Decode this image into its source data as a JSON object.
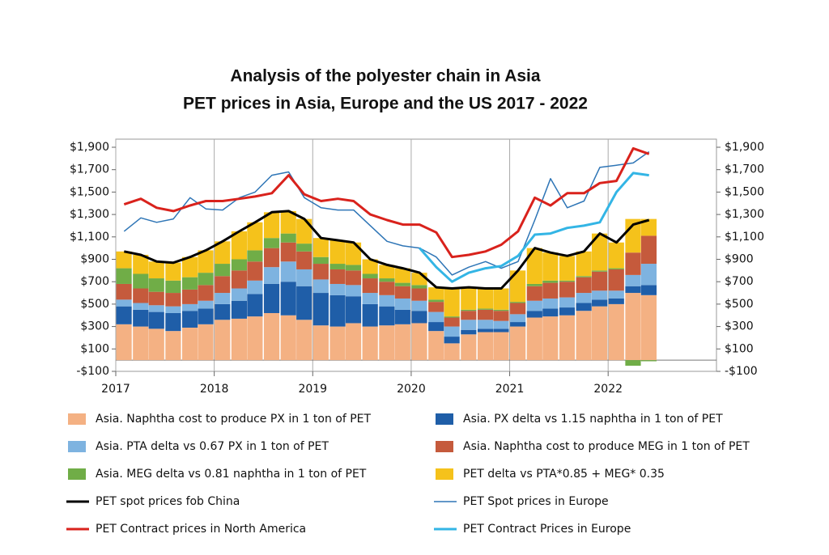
{
  "chart_data": {
    "type": "stacked-bar-line",
    "title": "Analysis of the polyester chain in Asia",
    "subtitle": "PET prices in Asia, Europe and the US 2017 - 2022",
    "x": [
      2017,
      2017.17,
      2017.33,
      2017.5,
      2017.67,
      2017.83,
      2018,
      2018.17,
      2018.33,
      2018.5,
      2018.67,
      2018.83,
      2019,
      2019.17,
      2019.33,
      2019.5,
      2019.67,
      2019.83,
      2020,
      2020.17,
      2020.33,
      2020.5,
      2020.67,
      2020.83,
      2021,
      2021.17,
      2021.33,
      2021.5,
      2021.67,
      2021.83,
      2022,
      2022.17,
      2022.33
    ],
    "xlim": [
      2017,
      2023.1
    ],
    "xticks": [
      2017,
      2018,
      2019,
      2020,
      2021,
      2022
    ],
    "ylim": [
      -100,
      1900
    ],
    "yticks": [
      {
        "value": -100,
        "label": "-$100"
      },
      {
        "value": 100,
        "label": "$100"
      },
      {
        "value": 300,
        "label": "$300"
      },
      {
        "value": 500,
        "label": "$500"
      },
      {
        "value": 700,
        "label": "$700"
      },
      {
        "value": 900,
        "label": "$900"
      },
      {
        "value": 1100,
        "label": "$1,100"
      },
      {
        "value": 1300,
        "label": "$1,300"
      },
      {
        "value": 1500,
        "label": "$1,500"
      },
      {
        "value": 1700,
        "label": "$1,700"
      },
      {
        "value": 1900,
        "label": "$1,900"
      }
    ],
    "y2lim": [
      -100,
      1900
    ],
    "y2ticks": [
      {
        "value": -100,
        "label": "-$100"
      },
      {
        "value": 100,
        "label": "$100"
      },
      {
        "value": 300,
        "label": "$300"
      },
      {
        "value": 500,
        "label": "$500"
      },
      {
        "value": 700,
        "label": "$700"
      },
      {
        "value": 900,
        "label": "$900"
      },
      {
        "value": 1100,
        "label": "$1,100"
      },
      {
        "value": 1300,
        "label": "$1,300"
      },
      {
        "value": 1500,
        "label": "$1,500"
      },
      {
        "value": 1700,
        "label": "$1,700"
      },
      {
        "value": 1900,
        "label": "$1,900"
      }
    ],
    "grid": "x",
    "series": [
      {
        "name": "Asia. Naphtha cost to produce PX in 1 ton of PET",
        "kind": "bar",
        "color": "#f4b183",
        "values": [
          320,
          300,
          280,
          260,
          290,
          320,
          360,
          370,
          390,
          420,
          400,
          360,
          310,
          300,
          330,
          300,
          310,
          320,
          330,
          260,
          150,
          230,
          250,
          250,
          300,
          380,
          390,
          400,
          440,
          480,
          500,
          600,
          580
        ]
      },
      {
        "name": "Asia. PX delta vs 1.15 naphtha in 1 ton of PET",
        "kind": "bar",
        "color": "#1f5ea8",
        "values": [
          160,
          150,
          150,
          160,
          150,
          140,
          140,
          160,
          200,
          260,
          300,
          300,
          290,
          280,
          240,
          200,
          170,
          130,
          110,
          80,
          60,
          40,
          30,
          30,
          40,
          60,
          70,
          70,
          70,
          60,
          50,
          60,
          90
        ]
      },
      {
        "name": "Asia. PTA delta vs 0.67 PX in 1 ton of PET",
        "kind": "bar",
        "color": "#7eb3e0",
        "values": [
          60,
          60,
          60,
          60,
          60,
          70,
          100,
          110,
          120,
          150,
          180,
          150,
          120,
          100,
          100,
          100,
          100,
          100,
          90,
          90,
          90,
          90,
          80,
          70,
          70,
          90,
          90,
          90,
          90,
          80,
          70,
          100,
          190
        ]
      },
      {
        "name": "Asia. Naphtha cost to produce MEG in 1 ton of PET",
        "kind": "bar",
        "color": "#c55a3c",
        "values": [
          140,
          130,
          120,
          120,
          130,
          140,
          150,
          160,
          170,
          170,
          170,
          160,
          140,
          130,
          130,
          130,
          120,
          110,
          110,
          90,
          80,
          80,
          90,
          90,
          100,
          130,
          140,
          140,
          140,
          170,
          190,
          200,
          250
        ]
      },
      {
        "name": "Asia. MEG delta vs 0.81 naphtha in 1 ton of PET",
        "kind": "bar",
        "color": "#70ad47",
        "values": [
          140,
          130,
          120,
          110,
          110,
          110,
          110,
          100,
          100,
          90,
          80,
          70,
          60,
          50,
          50,
          40,
          30,
          30,
          30,
          20,
          10,
          10,
          10,
          10,
          10,
          20,
          20,
          10,
          10,
          10,
          10,
          -50,
          -10
        ]
      },
      {
        "name": "PET delta vs PTA*0.85 + MEG* 0.35",
        "kind": "bar",
        "color": "#f5c21b",
        "values": [
          150,
          170,
          150,
          160,
          180,
          200,
          200,
          250,
          250,
          230,
          200,
          220,
          170,
          210,
          200,
          130,
          120,
          130,
          110,
          110,
          250,
          200,
          180,
          190,
          280,
          320,
          250,
          220,
          220,
          330,
          230,
          300,
          150
        ]
      },
      {
        "name": "PET spot prices fob China",
        "kind": "line",
        "color": "#000000",
        "width": 3,
        "values": [
          970,
          940,
          880,
          870,
          920,
          980,
          1060,
          1150,
          1230,
          1320,
          1330,
          1260,
          1090,
          1070,
          1050,
          900,
          850,
          820,
          780,
          650,
          640,
          650,
          640,
          640,
          800,
          1000,
          960,
          930,
          970,
          1130,
          1050,
          1210,
          1250
        ]
      },
      {
        "name": "PET Spot prices in Europe",
        "kind": "line",
        "color": "#2e75b6",
        "width": 1.5,
        "values": [
          1150,
          1270,
          1230,
          1260,
          1450,
          1350,
          1340,
          1450,
          1500,
          1650,
          1680,
          1450,
          1360,
          1340,
          1340,
          1200,
          1060,
          1020,
          1000,
          920,
          760,
          830,
          880,
          820,
          880,
          1250,
          1620,
          1360,
          1420,
          1720,
          1740,
          1760,
          1860
        ]
      },
      {
        "name": "PET Contract prices in North America",
        "kind": "line",
        "color": "#d9221c",
        "width": 3,
        "values": [
          1390,
          1440,
          1360,
          1330,
          1380,
          1420,
          1420,
          1440,
          1460,
          1490,
          1650,
          1480,
          1420,
          1440,
          1420,
          1300,
          1250,
          1210,
          1210,
          1140,
          920,
          940,
          970,
          1030,
          1150,
          1450,
          1380,
          1490,
          1490,
          1580,
          1600,
          1890,
          1840
        ]
      },
      {
        "name": "PET Contract Prices in Europe",
        "kind": "line",
        "color": "#33b5e5",
        "width": 3,
        "values": [
          null,
          null,
          null,
          null,
          null,
          null,
          null,
          null,
          null,
          null,
          null,
          null,
          null,
          null,
          null,
          null,
          null,
          null,
          1000,
          830,
          700,
          780,
          820,
          840,
          930,
          1120,
          1130,
          1180,
          1200,
          1230,
          1500,
          1670,
          1650
        ]
      }
    ]
  }
}
